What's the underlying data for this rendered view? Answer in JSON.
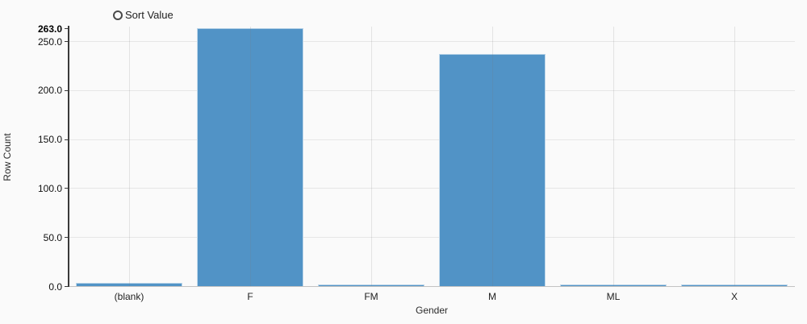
{
  "page": {
    "background": "#fafafa"
  },
  "controls": {
    "sort_label": "Sort Value"
  },
  "chart_data": {
    "type": "bar",
    "categories": [
      "(blank)",
      "F",
      "FM",
      "M",
      "ML",
      "X"
    ],
    "values": [
      3,
      263,
      2,
      237,
      2,
      2
    ],
    "xlabel": "Gender",
    "ylabel": "Row Count",
    "ylim": [
      0,
      263
    ],
    "y_ticks": [
      0,
      50,
      100,
      150,
      200,
      250,
      263
    ],
    "y_tick_labels": [
      "0.0",
      "50.0",
      "100.0",
      "150.0",
      "200.0",
      "250.0",
      "263.0"
    ],
    "bold_tick_label": "263.0",
    "grid": true,
    "legend": "none",
    "bar_color": "#5193c6",
    "gridline_color": "#e6e6e6",
    "axis_color": "#3a3a3a",
    "baseline_color": "#c3c3c3"
  }
}
